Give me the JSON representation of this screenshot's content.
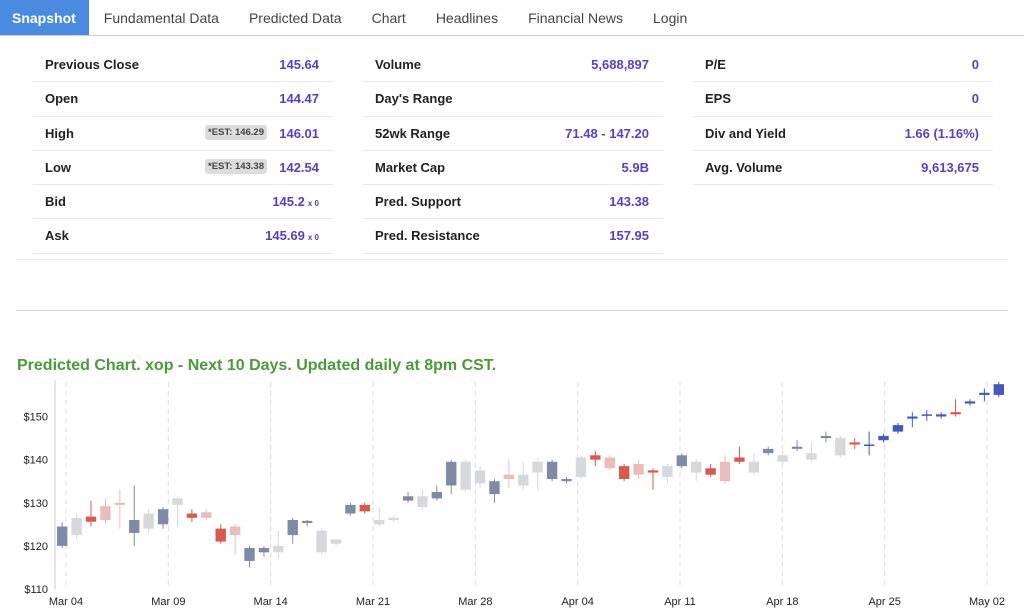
{
  "nav": {
    "items": [
      "Snapshot",
      "Fundamental Data",
      "Predicted Data",
      "Chart",
      "Headlines",
      "Financial News",
      "Login"
    ],
    "active": 0
  },
  "snapshot": {
    "col1": [
      {
        "label": "Previous Close",
        "value": "145.64"
      },
      {
        "label": "Open",
        "value": "144.47"
      },
      {
        "label": "High",
        "value": "146.01",
        "est": "*EST: 146.29"
      },
      {
        "label": "Low",
        "value": "142.54",
        "est": "*EST: 143.38"
      },
      {
        "label": "Bid",
        "value": "145.2",
        "sub": "x 0"
      },
      {
        "label": "Ask",
        "value": "145.69",
        "sub": "x 0"
      }
    ],
    "col2": [
      {
        "label": "Volume",
        "value": "5,688,897"
      },
      {
        "label": "Day's Range",
        "value": ""
      },
      {
        "label": "52wk Range",
        "value": "71.48 - 147.20"
      },
      {
        "label": "Market Cap",
        "value": "5.9B"
      },
      {
        "label": "Pred. Support",
        "value": "143.38"
      },
      {
        "label": "Pred. Resistance",
        "value": "157.95"
      }
    ],
    "col3": [
      {
        "label": "P/E",
        "value": "0"
      },
      {
        "label": "EPS",
        "value": "0"
      },
      {
        "label": "Div and Yield",
        "value": "1.66 (1.16%)"
      },
      {
        "label": "Avg. Volume",
        "value": "9,613,675"
      }
    ]
  },
  "chart_title": "Predicted Chart. xop - Next 10 Days. Updated daily at 8pm CST.",
  "chart_data": {
    "type": "candlestick",
    "ylim": [
      110,
      158
    ],
    "yticks": [
      110,
      120,
      130,
      140,
      150
    ],
    "ytick_prefix": "$",
    "xticks": [
      "Mar 04",
      "Mar 09",
      "Mar 14",
      "Mar 21",
      "Mar 28",
      "Apr 04",
      "Apr 11",
      "Apr 18",
      "Apr 25",
      "May 02"
    ],
    "colors": {
      "up": "#7f8ba6",
      "down": "#d65a4e",
      "hist_up": "#d6d8de",
      "hist_down": "#ebbcbc",
      "pred_up": "#4459b8",
      "pred_down": "#d9534f",
      "gridline": "#dddddd"
    },
    "candles": [
      {
        "open": 124.5,
        "close": 120.0,
        "high": 125.5,
        "low": 119.5,
        "style": "up"
      },
      {
        "open": 122.5,
        "close": 126.5,
        "high": 127.5,
        "low": 121.5,
        "style": "hist_up"
      },
      {
        "open": 126.8,
        "close": 125.6,
        "high": 130.5,
        "low": 124.5,
        "style": "down"
      },
      {
        "open": 126.0,
        "close": 129.2,
        "high": 131.0,
        "low": 125.0,
        "style": "hist_down"
      },
      {
        "open": 129.5,
        "close": 130.0,
        "high": 133.0,
        "low": 124.0,
        "style": "hist_down"
      },
      {
        "open": 126.0,
        "close": 123.0,
        "high": 134.0,
        "low": 120.0,
        "style": "up"
      },
      {
        "open": 124.0,
        "close": 127.5,
        "high": 128.5,
        "low": 123.0,
        "style": "hist_up"
      },
      {
        "open": 128.5,
        "close": 125.0,
        "high": 129.0,
        "low": 124.0,
        "style": "up"
      },
      {
        "open": 129.5,
        "close": 131.0,
        "high": 131.5,
        "low": 124.5,
        "style": "hist_up"
      },
      {
        "open": 127.5,
        "close": 126.5,
        "high": 128.5,
        "low": 125.5,
        "style": "down"
      },
      {
        "open": 127.8,
        "close": 126.5,
        "high": 128.5,
        "low": 126.0,
        "style": "hist_down"
      },
      {
        "open": 124.0,
        "close": 121.0,
        "high": 125.0,
        "low": 120.5,
        "style": "down"
      },
      {
        "open": 124.5,
        "close": 122.5,
        "high": 125.0,
        "low": 118.0,
        "style": "hist_down"
      },
      {
        "open": 119.5,
        "close": 116.5,
        "high": 120.0,
        "low": 115.0,
        "style": "up"
      },
      {
        "open": 119.5,
        "close": 118.5,
        "high": 120.0,
        "low": 117.5,
        "style": "up"
      },
      {
        "open": 118.5,
        "close": 120.0,
        "high": 123.5,
        "low": 117.0,
        "style": "hist_up"
      },
      {
        "open": 126.0,
        "close": 122.5,
        "high": 126.5,
        "low": 120.5,
        "style": "up"
      },
      {
        "open": 125.8,
        "close": 125.3,
        "high": 126.0,
        "low": 124.5,
        "style": "up"
      },
      {
        "open": 118.5,
        "close": 123.5,
        "high": 124.0,
        "low": 118.0,
        "style": "hist_up"
      },
      {
        "open": 121.5,
        "close": 120.5,
        "high": 121.5,
        "low": 120.0,
        "style": "hist_up"
      },
      {
        "open": 129.5,
        "close": 127.5,
        "high": 130.0,
        "low": 127.0,
        "style": "up"
      },
      {
        "open": 129.5,
        "close": 128.0,
        "high": 130.0,
        "low": 127.5,
        "style": "down"
      },
      {
        "open": 125.0,
        "close": 126.0,
        "high": 129.0,
        "low": 124.5,
        "style": "hist_up"
      },
      {
        "open": 126.5,
        "close": 126.0,
        "high": 127.0,
        "low": 125.5,
        "style": "hist_up"
      },
      {
        "open": 131.5,
        "close": 130.5,
        "high": 132.5,
        "low": 130.0,
        "style": "up"
      },
      {
        "open": 129.0,
        "close": 131.5,
        "high": 133.0,
        "low": 128.5,
        "style": "hist_up"
      },
      {
        "open": 132.5,
        "close": 131.0,
        "high": 134.0,
        "low": 130.5,
        "style": "up"
      },
      {
        "open": 139.5,
        "close": 134.0,
        "high": 140.0,
        "low": 132.0,
        "style": "up"
      },
      {
        "open": 133.0,
        "close": 139.5,
        "high": 140.0,
        "low": 132.5,
        "style": "hist_up"
      },
      {
        "open": 134.5,
        "close": 137.5,
        "high": 138.5,
        "low": 133.5,
        "style": "hist_up"
      },
      {
        "open": 135.0,
        "close": 132.0,
        "high": 135.5,
        "low": 130.0,
        "style": "up"
      },
      {
        "open": 135.5,
        "close": 136.5,
        "high": 140.0,
        "low": 133.5,
        "style": "hist_down"
      },
      {
        "open": 136.5,
        "close": 134.0,
        "high": 139.5,
        "low": 133.0,
        "style": "hist_up"
      },
      {
        "open": 139.5,
        "close": 137.0,
        "high": 140.5,
        "low": 133.0,
        "style": "hist_up"
      },
      {
        "open": 139.5,
        "close": 135.5,
        "high": 140.0,
        "low": 135.0,
        "style": "up"
      },
      {
        "open": 135.5,
        "close": 135.0,
        "high": 136.0,
        "low": 134.5,
        "style": "up"
      },
      {
        "open": 136.0,
        "close": 140.5,
        "high": 141.0,
        "low": 135.5,
        "style": "hist_up"
      },
      {
        "open": 141.0,
        "close": 140.0,
        "high": 142.0,
        "low": 138.5,
        "style": "down"
      },
      {
        "open": 140.5,
        "close": 138.0,
        "high": 141.0,
        "low": 137.5,
        "style": "hist_down"
      },
      {
        "open": 138.5,
        "close": 135.5,
        "high": 139.0,
        "low": 135.0,
        "style": "down"
      },
      {
        "open": 139.0,
        "close": 136.5,
        "high": 140.0,
        "low": 135.5,
        "style": "hist_down"
      },
      {
        "open": 137.5,
        "close": 137.0,
        "high": 138.0,
        "low": 133.0,
        "style": "down"
      },
      {
        "open": 138.5,
        "close": 136.0,
        "high": 139.0,
        "low": 134.5,
        "style": "hist_up"
      },
      {
        "open": 141.0,
        "close": 138.5,
        "high": 141.5,
        "low": 138.0,
        "style": "up"
      },
      {
        "open": 137.0,
        "close": 139.5,
        "high": 140.0,
        "low": 135.0,
        "style": "hist_up"
      },
      {
        "open": 138.0,
        "close": 136.5,
        "high": 139.0,
        "low": 136.0,
        "style": "down"
      },
      {
        "open": 139.5,
        "close": 135.0,
        "high": 141.0,
        "low": 134.5,
        "style": "hist_down"
      },
      {
        "open": 139.5,
        "close": 140.5,
        "high": 143.0,
        "low": 139.0,
        "style": "down"
      },
      {
        "open": 139.5,
        "close": 137.0,
        "high": 141.5,
        "low": 136.5,
        "style": "hist_up"
      },
      {
        "open": 142.5,
        "close": 141.5,
        "high": 143.0,
        "low": 141.0,
        "style": "up"
      },
      {
        "open": 139.5,
        "close": 141.0,
        "high": 142.0,
        "low": 139.0,
        "style": "hist_up"
      },
      {
        "open": 143.0,
        "close": 142.5,
        "high": 144.5,
        "low": 142.0,
        "style": "up"
      },
      {
        "open": 140.0,
        "close": 141.5,
        "high": 144.0,
        "low": 139.5,
        "style": "hist_up"
      },
      {
        "open": 145.5,
        "close": 145.0,
        "high": 146.5,
        "low": 144.0,
        "style": "up"
      },
      {
        "open": 145.0,
        "close": 141.0,
        "high": 145.5,
        "low": 140.5,
        "style": "hist_up"
      },
      {
        "open": 144.0,
        "close": 143.5,
        "high": 145.0,
        "low": 142.5,
        "style": "down"
      },
      {
        "open": 143.5,
        "close": 143.5,
        "high": 146.5,
        "low": 141.0,
        "style": "pred_up"
      },
      {
        "open": 144.5,
        "close": 145.5,
        "high": 146.0,
        "low": 144.0,
        "style": "pred_up"
      },
      {
        "open": 146.5,
        "close": 148.0,
        "high": 148.5,
        "low": 146.0,
        "style": "pred_up"
      },
      {
        "open": 149.5,
        "close": 150.0,
        "high": 151.0,
        "low": 147.5,
        "style": "pred_up"
      },
      {
        "open": 150.5,
        "close": 150.5,
        "high": 151.5,
        "low": 149.0,
        "style": "pred_up"
      },
      {
        "open": 150.0,
        "close": 150.5,
        "high": 151.0,
        "low": 149.5,
        "style": "pred_up"
      },
      {
        "open": 151.0,
        "close": 150.5,
        "high": 154.0,
        "low": 150.0,
        "style": "pred_down"
      },
      {
        "open": 153.0,
        "close": 153.5,
        "high": 154.0,
        "low": 152.5,
        "style": "pred_up"
      },
      {
        "open": 155.0,
        "close": 155.5,
        "high": 156.5,
        "low": 153.5,
        "style": "pred_up"
      },
      {
        "open": 155.0,
        "close": 157.5,
        "high": 158.0,
        "low": 154.5,
        "style": "pred_up"
      }
    ]
  }
}
